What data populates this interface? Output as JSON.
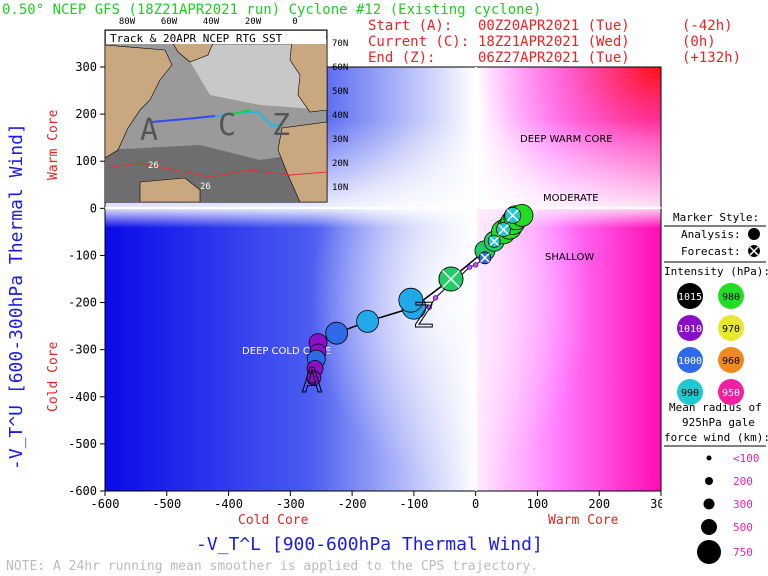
{
  "header": {
    "title": "0.50° NCEP GFS (18Z21APR2021 run) Cyclone #12 (Existing cyclone)",
    "start_label": "Start (A):",
    "start_time": "00Z20APR2021 (Tue)",
    "start_offset": "(-42h)",
    "current_label": "Current (C):",
    "current_time": "18Z21APR2021 (Wed)",
    "current_offset": "(0h)",
    "end_label": "End (Z):",
    "end_time": "06Z27APR2021 (Tue)",
    "end_offset": "(+132h)"
  },
  "inset": {
    "title": "Track & 20APR NCEP RTG SST",
    "lon_labels": [
      "80W",
      "60W",
      "40W",
      "20W",
      "0"
    ],
    "lat_labels": [
      "70N",
      "60N",
      "50N",
      "40N",
      "30N",
      "20N",
      "10N"
    ],
    "point_labels": [
      "A",
      "C",
      "Z"
    ],
    "sst_labels": [
      "26",
      "26"
    ]
  },
  "regions": {
    "deep_warm_core": "DEEP WARM CORE",
    "moderate": "MODERATE",
    "shallow": "SHALLOW",
    "deep_cold_core": "DEEP COLD CORE"
  },
  "legend": {
    "marker_style_title": "Marker Style:",
    "analysis_label": "Analysis:",
    "forecast_label": "Forecast:",
    "intensity_title": "Intensity (hPa):",
    "intensity_levels": [
      {
        "label": "1015",
        "color": "#000000"
      },
      {
        "label": "980",
        "color": "#22dd22"
      },
      {
        "label": "1010",
        "color": "#8a10c8"
      },
      {
        "label": "970",
        "color": "#e8e830"
      },
      {
        "label": "1000",
        "color": "#2f6be8"
      },
      {
        "label": "960",
        "color": "#f08a20"
      },
      {
        "label": "990",
        "color": "#20c8d0"
      },
      {
        "label": "950",
        "color": "#f020a0"
      }
    ],
    "radius_title_1": "Mean radius of",
    "radius_title_2": "925hPa gale",
    "radius_title_3": "force wind (km):",
    "radius_levels": [
      "<100",
      "200",
      "300",
      "500",
      "750"
    ]
  },
  "note": "NOTE:  A 24hr running mean smoother is applied to the CPS trajectory.",
  "chart_data": {
    "type": "scatter",
    "xlabel": "-V_T^L [900-600hPa Thermal Wind]",
    "ylabel": "-V_T^U [600-300hPa Thermal Wind]",
    "x_left_label": "Cold Core",
    "x_right_label": "Warm Core",
    "y_bottom_label": "Cold Core",
    "y_top_label": "Warm Core",
    "xlim": [
      -600,
      300
    ],
    "ylim": [
      -600,
      300
    ],
    "xticks": [
      -600,
      -500,
      -400,
      -300,
      -200,
      -100,
      0,
      100,
      200,
      300
    ],
    "yticks": [
      -600,
      -500,
      -400,
      -300,
      -200,
      -100,
      0,
      100,
      200,
      300
    ],
    "start_point_label": "A",
    "end_point_label": "Z",
    "track": [
      {
        "x": -255,
        "y": -285,
        "color": "#8a10c8",
        "r": 9
      },
      {
        "x": -255,
        "y": -305,
        "color": "#8a10c8",
        "r": 8
      },
      {
        "x": -258,
        "y": -320,
        "color": "#2f6be8",
        "r": 9
      },
      {
        "x": -260,
        "y": -340,
        "color": "#8a10c8",
        "r": 8
      },
      {
        "x": -262,
        "y": -360,
        "color": "#8a10c8",
        "r": 7
      },
      {
        "x": -225,
        "y": -265,
        "color": "#2f6be8",
        "r": 11
      },
      {
        "x": -175,
        "y": -240,
        "color": "#20a8e8",
        "r": 11
      },
      {
        "x": -100,
        "y": -210,
        "color": "#20a8e8",
        "r": 12
      },
      {
        "x": -105,
        "y": -195,
        "color": "#20a8e8",
        "r": 12
      },
      {
        "x": -40,
        "y": -150,
        "color": "#22cc66",
        "r": 12
      },
      {
        "x": 15,
        "y": -90,
        "color": "#22cc66",
        "r": 10
      },
      {
        "x": 30,
        "y": -70,
        "color": "#22cc66",
        "r": 10
      },
      {
        "x": 45,
        "y": -50,
        "color": "#22dd22",
        "r": 12
      },
      {
        "x": 55,
        "y": -40,
        "color": "#22dd22",
        "r": 12
      },
      {
        "x": 60,
        "y": -30,
        "color": "#22dd22",
        "r": 12
      },
      {
        "x": 65,
        "y": -20,
        "color": "#22dd22",
        "r": 12
      },
      {
        "x": 75,
        "y": -15,
        "color": "#22dd22",
        "r": 11
      }
    ],
    "forecast_markers": [
      {
        "x": -40,
        "y": -150,
        "color": "#22cc66",
        "r": 12
      },
      {
        "x": 15,
        "y": -105,
        "color": "#2f6be8",
        "r": 6
      },
      {
        "x": 30,
        "y": -70,
        "color": "#20c8d0",
        "r": 6
      },
      {
        "x": 45,
        "y": -45,
        "color": "#20c8d0",
        "r": 7
      },
      {
        "x": 60,
        "y": -15,
        "color": "#20c8d0",
        "r": 8
      }
    ],
    "end_tail": [
      {
        "x": -75,
        "y": -210
      },
      {
        "x": -65,
        "y": -190
      },
      {
        "x": -45,
        "y": -165
      },
      {
        "x": -30,
        "y": -150
      },
      {
        "x": -10,
        "y": -125
      },
      {
        "x": 0,
        "y": -120
      },
      {
        "x": 15,
        "y": -105
      }
    ]
  }
}
